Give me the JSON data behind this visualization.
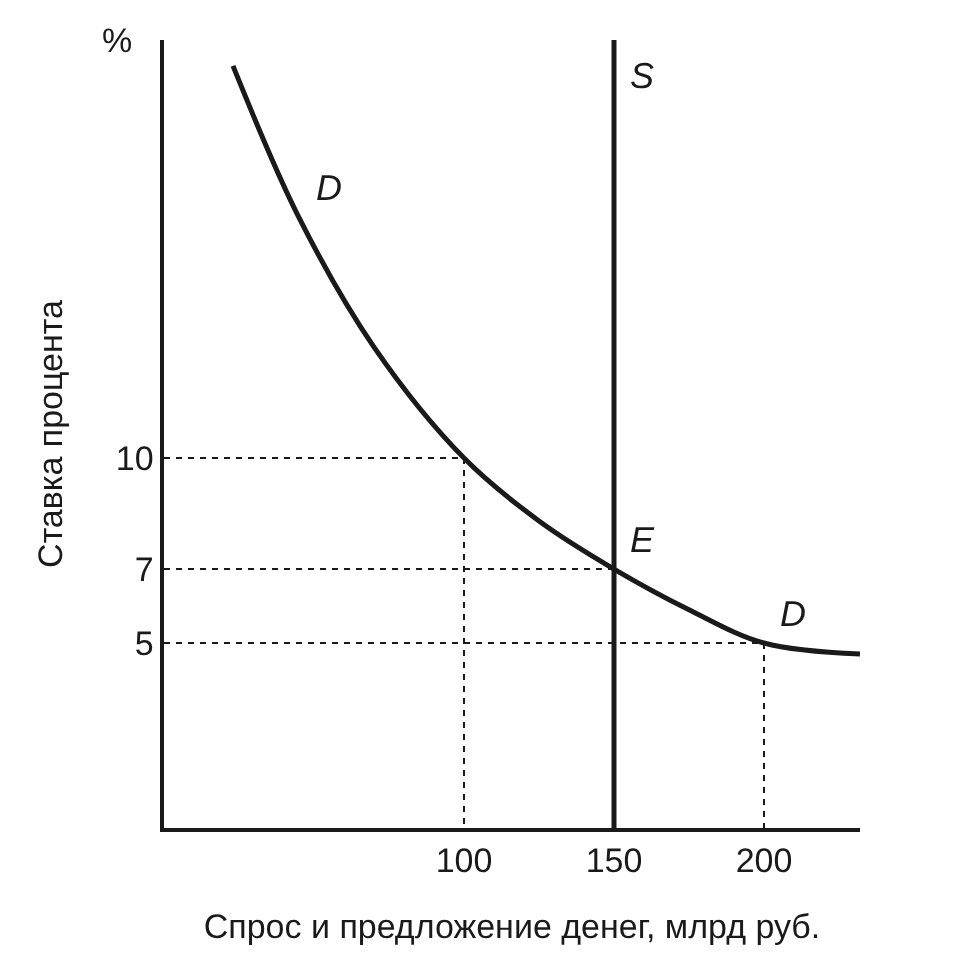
{
  "chart_data": {
    "type": "line",
    "xlabel": "Спрос и предложение денег, млрд руб.",
    "ylabel": "Ставка процента",
    "xlim": [
      0,
      232
    ],
    "ylim": [
      0,
      21.3
    ],
    "xticks": [
      100,
      150,
      200
    ],
    "yticks": [
      5,
      7,
      10
    ],
    "marker": "none",
    "series": [
      {
        "color": "#1a1a1a",
        "x": [
          23,
          45,
          70,
          100,
          125,
          150,
          175,
          200,
          232
        ],
        "values": [
          20.6,
          16.5,
          13,
          10,
          8.3,
          7,
          5.9,
          5,
          4.7
        ],
        "line_style": "solid"
      },
      {
        "color": "#1a1a1a",
        "x": [
          150,
          150,
          150
        ],
        "values": [
          0,
          19.5,
          21.3
        ],
        "line_style": "solid"
      },
      {
        "color": "#1a1a1a",
        "x": [
          0,
          100,
          100
        ],
        "values": [
          10,
          10,
          0
        ],
        "line_style": "dotted"
      },
      {
        "color": "#1a1a1a",
        "x": [
          0,
          150
        ],
        "values": [
          7,
          7
        ],
        "line_style": "dotted"
      },
      {
        "color": "#1a1a1a",
        "x": [
          0,
          200,
          200
        ],
        "values": [
          5,
          5,
          0
        ],
        "line_style": "dotted"
      }
    ],
    "annotations": [
      "%",
      {
        "text": "D",
        "x": 45,
        "y": 16.5
      },
      {
        "text": "S",
        "x": 150,
        "y": 19.5
      },
      {
        "text": "E",
        "x": 150,
        "y": 7
      },
      {
        "text": "D",
        "x": 200,
        "y": 5
      }
    ]
  }
}
